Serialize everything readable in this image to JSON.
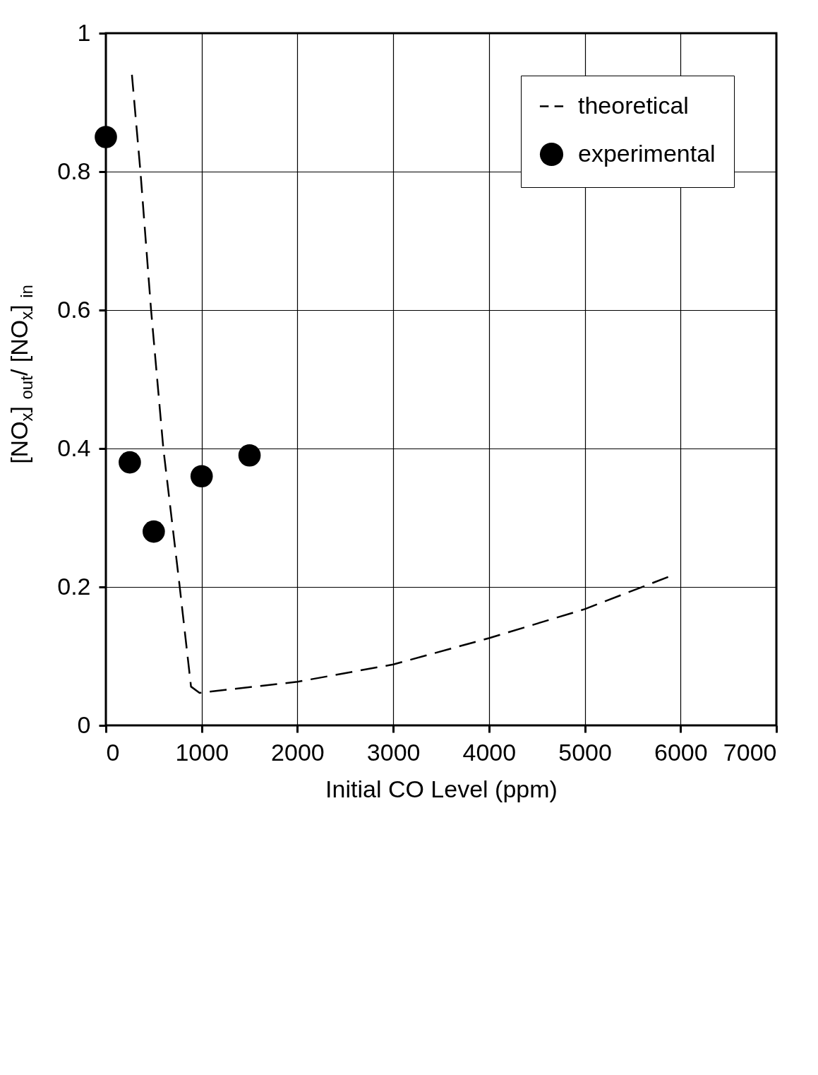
{
  "chart_data": {
    "type": "scatter",
    "xlabel": "Initial  CO Level (ppm)",
    "ylabel": "[NO$_{x}$] $_{out}$/ [NO$_{x}$] $_{in}$",
    "xlim": [
      0,
      7000
    ],
    "xticks": [
      0,
      1000,
      2000,
      3000,
      4000,
      5000,
      6000,
      7000
    ],
    "ylim": [
      0,
      1
    ],
    "yticks": [
      0,
      0.2,
      0.4,
      0.6,
      0.8,
      1
    ],
    "grid": true,
    "legend": "top right",
    "series": [
      {
        "name": "theoretical",
        "type": "line",
        "line_style": "dashed",
        "color": "#000000",
        "x": [
          272,
          361,
          472,
          600,
          767,
          889,
          978,
          2000,
          3000,
          4000,
          5000,
          5900
        ],
        "values": [
          0.94,
          0.8,
          0.6,
          0.4,
          0.205,
          0.056,
          0.047,
          0.063,
          0.088,
          0.126,
          0.168,
          0.216
        ]
      },
      {
        "name": "experimental",
        "type": "scatter",
        "marker": "circle",
        "color": "#000000",
        "x": [
          0,
          250,
          500,
          1000,
          1500
        ],
        "values": [
          0.85,
          0.38,
          0.28,
          0.36,
          0.39
        ]
      }
    ]
  }
}
